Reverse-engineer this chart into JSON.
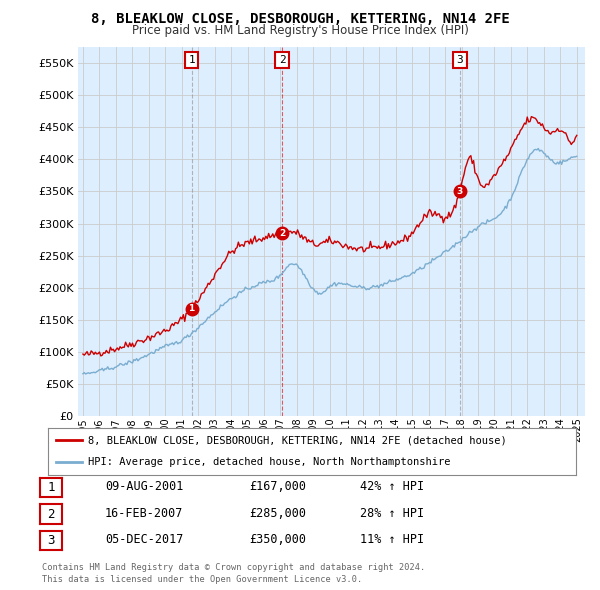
{
  "title": "8, BLEAKLOW CLOSE, DESBOROUGH, KETTERING, NN14 2FE",
  "subtitle": "Price paid vs. HM Land Registry's House Price Index (HPI)",
  "red_label": "8, BLEAKLOW CLOSE, DESBOROUGH, KETTERING, NN14 2FE (detached house)",
  "blue_label": "HPI: Average price, detached house, North Northamptonshire",
  "transactions": [
    {
      "num": 1,
      "date": "09-AUG-2001",
      "price": 167000,
      "hpi_pct": "42% ↑ HPI",
      "x": 2001.6,
      "line_style": "dashed_gray"
    },
    {
      "num": 2,
      "date": "16-FEB-2007",
      "price": 285000,
      "hpi_pct": "28% ↑ HPI",
      "x": 2007.1,
      "line_style": "dashed_red"
    },
    {
      "num": 3,
      "date": "05-DEC-2017",
      "price": 350000,
      "hpi_pct": "11% ↑ HPI",
      "x": 2017.9,
      "line_style": "dashed_gray"
    }
  ],
  "footer_line1": "Contains HM Land Registry data © Crown copyright and database right 2024.",
  "footer_line2": "This data is licensed under the Open Government Licence v3.0.",
  "ylim": [
    0,
    575000
  ],
  "xlim": [
    1994.7,
    2025.5
  ],
  "yticks": [
    0,
    50000,
    100000,
    150000,
    200000,
    250000,
    300000,
    350000,
    400000,
    450000,
    500000,
    550000
  ],
  "xticks": [
    1995,
    1996,
    1997,
    1998,
    1999,
    2000,
    2001,
    2002,
    2003,
    2004,
    2005,
    2006,
    2007,
    2008,
    2009,
    2010,
    2011,
    2012,
    2013,
    2014,
    2015,
    2016,
    2017,
    2018,
    2019,
    2020,
    2021,
    2022,
    2023,
    2024,
    2025
  ],
  "red_color": "#cc0000",
  "blue_color": "#7aadcf",
  "fill_color": "#ddeeff",
  "transaction_marker_color": "#cc0000",
  "background_color": "#ffffff",
  "grid_color": "#cccccc"
}
